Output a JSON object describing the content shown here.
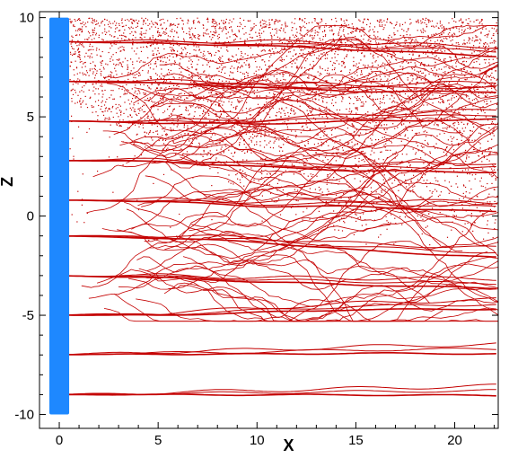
{
  "chart_data": {
    "type": "line",
    "title": "",
    "xlabel": "X",
    "ylabel": "Z",
    "xlim": [
      -1,
      22.2
    ],
    "ylim": [
      -10.7,
      10.3
    ],
    "x_ticks": [
      0,
      5,
      10,
      15,
      20
    ],
    "y_ticks": [
      -10,
      -5,
      0,
      5,
      10
    ],
    "x_tick_labels": [
      "0",
      "5",
      "10",
      "15",
      "20"
    ],
    "y_tick_labels": [
      "-10",
      "-5",
      "0",
      "5",
      "10"
    ],
    "grid": false,
    "legend": "none",
    "colors": {
      "streamline": "#c40000",
      "particles": "#c40000",
      "cylinder": "#1e88ff",
      "axes": "#000000"
    },
    "cylinder": {
      "x": [
        -0.5,
        0.5
      ],
      "z": [
        -10,
        10
      ]
    },
    "streamline_seeds_z": [
      -9.0,
      -7.0,
      -5.0,
      -3.0,
      -1.0,
      0.8,
      2.8,
      4.8,
      6.8,
      8.8
    ],
    "series": [
      {
        "seed_z": 8.8,
        "x": [
          -0.5,
          5,
          10,
          15,
          22
        ],
        "z": [
          8.8,
          8.75,
          8.7,
          8.55,
          8.3
        ]
      },
      {
        "seed_z": 6.8,
        "x": [
          -0.5,
          5,
          10,
          15,
          22
        ],
        "z": [
          6.8,
          6.75,
          6.6,
          6.45,
          6.5
        ]
      },
      {
        "seed_z": 4.8,
        "x": [
          -0.5,
          5,
          10,
          15,
          22
        ],
        "z": [
          4.8,
          4.75,
          4.75,
          4.95,
          5.1
        ]
      },
      {
        "seed_z": 2.8,
        "x": [
          -0.5,
          5,
          10,
          15,
          22
        ],
        "z": [
          2.8,
          2.8,
          2.6,
          2.45,
          2.45
        ]
      },
      {
        "seed_z": 0.8,
        "x": [
          -0.5,
          5,
          10,
          15,
          22
        ],
        "z": [
          0.8,
          0.8,
          0.6,
          0.65,
          0.45
        ]
      },
      {
        "seed_z": -1.0,
        "x": [
          -0.5,
          5,
          10,
          15,
          22
        ],
        "z": [
          -1.0,
          -1.05,
          -1.2,
          -1.55,
          -1.85
        ]
      },
      {
        "seed_z": -3.0,
        "x": [
          -0.5,
          5,
          10,
          15,
          22
        ],
        "z": [
          -3.0,
          -3.05,
          -3.2,
          -3.3,
          -3.4
        ]
      },
      {
        "seed_z": -5.0,
        "x": [
          -0.5,
          5,
          10,
          15,
          22
        ],
        "z": [
          -5.0,
          -4.95,
          -4.75,
          -4.55,
          -4.45
        ]
      },
      {
        "seed_z": -7.0,
        "x": [
          -0.5,
          5,
          10,
          15,
          22
        ],
        "z": [
          -7.0,
          -6.9,
          -6.85,
          -6.75,
          -6.7
        ]
      },
      {
        "seed_z": -9.0,
        "x": [
          -0.5,
          5,
          10,
          15,
          22
        ],
        "z": [
          -9.0,
          -8.95,
          -8.9,
          -8.85,
          -8.8
        ]
      }
    ],
    "particle_region": {
      "x": [
        0.5,
        22.2
      ],
      "z": [
        -1.5,
        10.0
      ]
    }
  }
}
